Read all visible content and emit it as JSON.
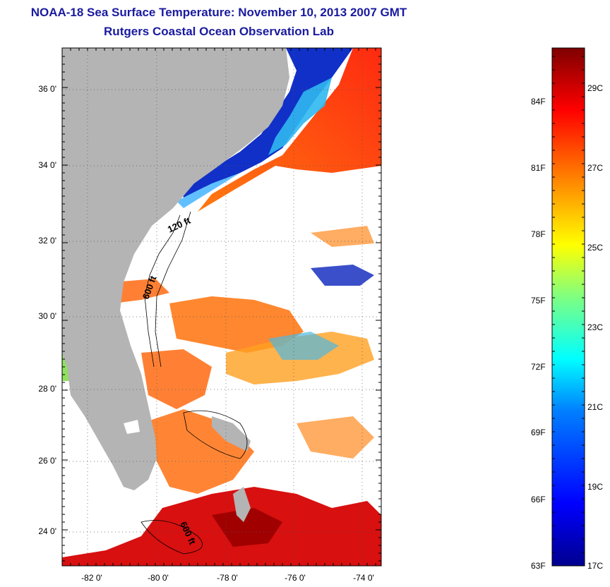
{
  "header": {
    "title": "NOAA-18 Sea Surface Temperature:  November 10, 2013 2007 GMT",
    "subtitle": "Rutgers Coastal Ocean Observation Lab"
  },
  "map": {
    "lat_labels": [
      "36 0'",
      "34 0'",
      "32 0'",
      "30 0'",
      "28 0'",
      "26 0'",
      "24 0'"
    ],
    "lon_labels": [
      "-82 0'",
      "-80 0'",
      "-78 0'",
      "-76 0'",
      "-74 0'"
    ],
    "contour_labels": [
      "120 ft",
      "600 ft",
      "600 ft"
    ],
    "colors": {
      "land": "#b4b4b4",
      "cloud": "#ffffff"
    }
  },
  "colorbar": {
    "celsius_labels": [
      "29C",
      "27C",
      "25C",
      "23C",
      "21C",
      "19C",
      "17C"
    ],
    "fahrenheit_labels": [
      "84F",
      "81F",
      "78F",
      "75F",
      "72F",
      "69F",
      "66F",
      "63F"
    ],
    "colors": [
      "#7f0000",
      "#ff0000",
      "#ff8000",
      "#ffff00",
      "#80ff80",
      "#00ffff",
      "#0080ff",
      "#0000ff",
      "#00008f"
    ]
  }
}
